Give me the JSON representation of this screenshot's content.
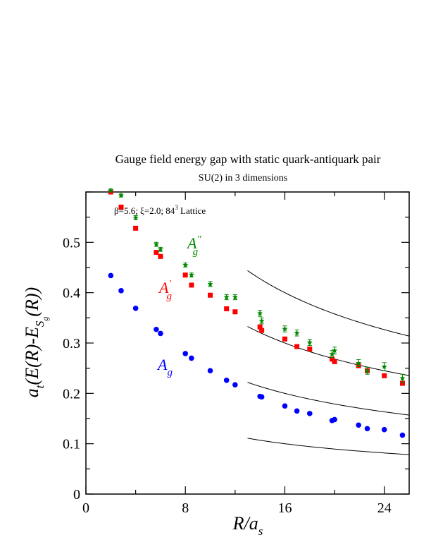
{
  "chart_data": {
    "type": "scatter",
    "title": "Gauge field energy gap with static quark-antiquark pair",
    "subtitle": "SU(2) in 3 dimensions",
    "annotation": {
      "prefix": "β=5.6; ξ=2.0; 84",
      "superscript": "3",
      "suffix": " Lattice"
    },
    "xlabel": "R/a",
    "xlabel_sub": "s",
    "ylabel": "a",
    "ylabel_sub1": "t",
    "ylabel_mid": "(E(R)-E",
    "ylabel_sub2": "S",
    "ylabel_subsub": "g",
    "ylabel_end": "(R))",
    "xlim": [
      0,
      26
    ],
    "ylim": [
      0,
      0.6
    ],
    "xticks": [
      0,
      8,
      16,
      24
    ],
    "xtick_labels": [
      "0",
      "8",
      "16",
      "24"
    ],
    "yticks": [
      0,
      0.1,
      0.2,
      0.3,
      0.4,
      0.5
    ],
    "ytick_labels": [
      "0",
      "0.1",
      "0.2",
      "0.3",
      "0.4",
      "0.5"
    ],
    "grid": false,
    "legend": "inline labels",
    "series": [
      {
        "name": "A_g",
        "label_main": "A",
        "label_sub": "g",
        "label_prime": "",
        "marker": "circle",
        "color": "#0000ff",
        "x": [
          2,
          2.83,
          4,
          5.66,
          6,
          8,
          8.49,
          10,
          11.31,
          12,
          14,
          14.14,
          16,
          16.97,
          18,
          19.8,
          20,
          21.93,
          22.63,
          24,
          25.46
        ],
        "y": [
          0.434,
          0.404,
          0.369,
          0.327,
          0.319,
          0.279,
          0.27,
          0.245,
          0.226,
          0.217,
          0.194,
          0.193,
          0.175,
          0.165,
          0.16,
          0.146,
          0.148,
          0.137,
          0.13,
          0.128,
          0.117
        ]
      },
      {
        "name": "A'_g",
        "label_main": "A",
        "label_sub": "g",
        "label_prime": "′",
        "marker": "square",
        "color": "#ff0000",
        "x": [
          2,
          2.83,
          4,
          5.66,
          6,
          8,
          8.49,
          10,
          11.31,
          12,
          14,
          14.14,
          16,
          16.97,
          18,
          19.8,
          20,
          21.93,
          22.63,
          24,
          25.46
        ],
        "y": [
          0.6,
          0.57,
          0.528,
          0.48,
          0.472,
          0.435,
          0.415,
          0.395,
          0.368,
          0.362,
          0.332,
          0.325,
          0.308,
          0.293,
          0.288,
          0.268,
          0.263,
          0.255,
          0.245,
          0.235,
          0.22
        ]
      },
      {
        "name": "A''_g",
        "label_main": "A",
        "label_sub": "g",
        "label_prime": "′′",
        "marker": "star",
        "color": "#008800",
        "x": [
          2,
          2.83,
          4,
          5.66,
          6,
          8,
          8.49,
          10,
          11.31,
          12,
          14,
          14.14,
          16,
          16.97,
          18,
          19.8,
          20,
          21.93,
          22.63,
          24,
          25.46
        ],
        "y": [
          0.603,
          0.593,
          0.549,
          0.496,
          0.486,
          0.455,
          0.435,
          0.417,
          0.391,
          0.391,
          0.359,
          0.344,
          0.328,
          0.32,
          0.301,
          0.278,
          0.285,
          0.26,
          0.245,
          0.253,
          0.23
        ],
        "yerr": [
          0.003,
          0.003,
          0.004,
          0.004,
          0.004,
          0.004,
          0.004,
          0.005,
          0.005,
          0.005,
          0.006,
          0.006,
          0.006,
          0.006,
          0.006,
          0.007,
          0.007,
          0.007,
          0.007,
          0.008,
          0.008
        ]
      }
    ],
    "curves": [
      {
        "name": "curve-1",
        "x0": 13,
        "x1": 26,
        "c": 1.6
      },
      {
        "name": "curve-2",
        "x0": 13,
        "x1": 26,
        "c": 1.2
      },
      {
        "name": "curve-3",
        "x0": 13,
        "x1": 26,
        "c": 0.8
      },
      {
        "name": "curve-4",
        "x0": 13,
        "x1": 26,
        "c": 0.4
      }
    ]
  }
}
